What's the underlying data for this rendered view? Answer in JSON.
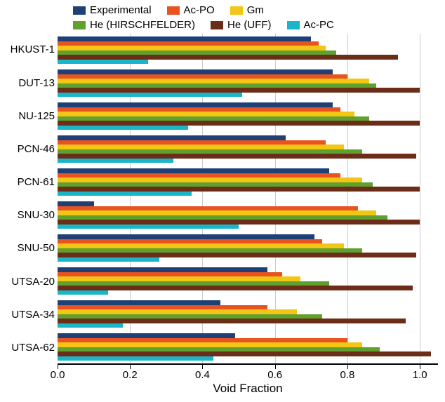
{
  "chart": {
    "type": "bar-horizontal-grouped",
    "xlabel": "Void Fraction",
    "xlabel_fontsize": 17,
    "label_fontsize": 15,
    "background_color": "#ffffff",
    "grid_color": "#cccccc",
    "axis_color": "#000000",
    "xlim": [
      0.0,
      1.05
    ],
    "xticks": [
      0.0,
      0.2,
      0.4,
      0.6,
      0.8,
      1.0
    ],
    "xtick_labels": [
      "0.0",
      "0.2",
      "0.4",
      "0.6",
      "0.8",
      "1.0"
    ],
    "series": [
      {
        "key": "experimental",
        "label": "Experimental",
        "color": "#1f3f77"
      },
      {
        "key": "ac_po",
        "label": "Ac-PO",
        "color": "#e8531f"
      },
      {
        "key": "gm",
        "label": "Gm",
        "color": "#f3c515"
      },
      {
        "key": "he_hirsch",
        "label": "He (HIRSCHFELDER)",
        "color": "#5fa02e"
      },
      {
        "key": "he_uff",
        "label": "He (UFF)",
        "color": "#6b2d17"
      },
      {
        "key": "ac_pc",
        "label": "Ac-PC",
        "color": "#19b6c9"
      }
    ],
    "legend_rows": [
      [
        "experimental",
        "ac_po",
        "gm"
      ],
      [
        "he_hirsch",
        "he_uff",
        "ac_pc"
      ]
    ],
    "categories": [
      {
        "label": "HKUST-1",
        "values": {
          "experimental": 0.7,
          "ac_po": 0.72,
          "gm": 0.74,
          "he_hirsch": 0.77,
          "he_uff": 0.94,
          "ac_pc": 0.25
        }
      },
      {
        "label": "DUT-13",
        "values": {
          "experimental": 0.76,
          "ac_po": 0.8,
          "gm": 0.86,
          "he_hirsch": 0.88,
          "he_uff": 1.0,
          "ac_pc": 0.51
        }
      },
      {
        "label": "NU-125",
        "values": {
          "experimental": 0.76,
          "ac_po": 0.78,
          "gm": 0.82,
          "he_hirsch": 0.86,
          "he_uff": 1.0,
          "ac_pc": 0.36
        }
      },
      {
        "label": "PCN-46",
        "values": {
          "experimental": 0.63,
          "ac_po": 0.74,
          "gm": 0.79,
          "he_hirsch": 0.84,
          "he_uff": 0.99,
          "ac_pc": 0.32
        }
      },
      {
        "label": "PCN-61",
        "values": {
          "experimental": 0.75,
          "ac_po": 0.78,
          "gm": 0.84,
          "he_hirsch": 0.87,
          "he_uff": 1.0,
          "ac_pc": 0.37
        }
      },
      {
        "label": "SNU-30",
        "values": {
          "experimental": 0.1,
          "ac_po": 0.83,
          "gm": 0.88,
          "he_hirsch": 0.91,
          "he_uff": 1.0,
          "ac_pc": 0.5
        }
      },
      {
        "label": "SNU-50",
        "values": {
          "experimental": 0.71,
          "ac_po": 0.73,
          "gm": 0.79,
          "he_hirsch": 0.84,
          "he_uff": 0.99,
          "ac_pc": 0.28
        }
      },
      {
        "label": "UTSA-20",
        "values": {
          "experimental": 0.58,
          "ac_po": 0.62,
          "gm": 0.67,
          "he_hirsch": 0.75,
          "he_uff": 0.98,
          "ac_pc": 0.14
        }
      },
      {
        "label": "UTSA-34",
        "values": {
          "experimental": 0.45,
          "ac_po": 0.58,
          "gm": 0.66,
          "he_hirsch": 0.73,
          "he_uff": 0.96,
          "ac_pc": 0.18
        }
      },
      {
        "label": "UTSA-62",
        "values": {
          "experimental": 0.49,
          "ac_po": 0.8,
          "gm": 0.84,
          "he_hirsch": 0.89,
          "he_uff": 1.03,
          "ac_pc": 0.43
        }
      }
    ]
  }
}
